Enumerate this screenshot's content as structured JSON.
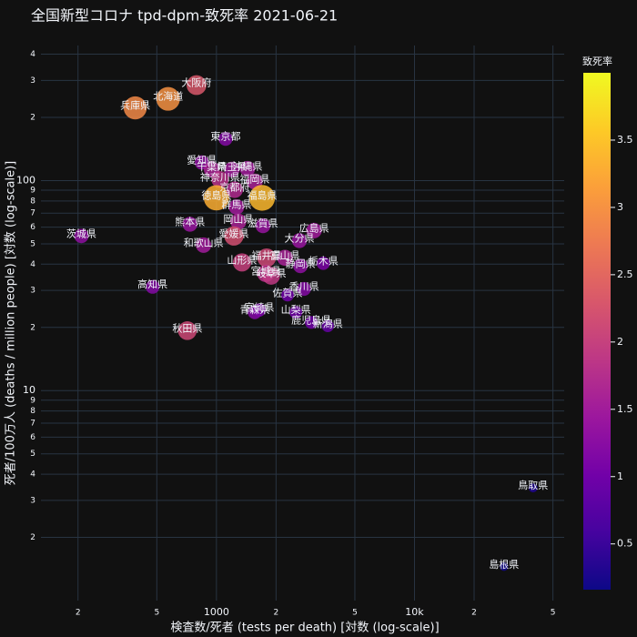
{
  "chart_data": {
    "type": "scatter",
    "title": "全国新型コロナ tpd-dpm-致死率 2021-06-21",
    "x_label": "検査数/死者 (tests per death) [対数 (log-scale)]",
    "y_label": "死者/100万人 (deaths / million people) [対数 (log-scale)]",
    "log_x": true,
    "log_y": true,
    "grid": true,
    "xlim": [
      130,
      57000
    ],
    "ylim": [
      1,
      440
    ],
    "xticks": [
      {
        "value": 200,
        "label": "2"
      },
      {
        "value": 500,
        "label": "5"
      },
      1000,
      {
        "value": 2000,
        "label": "2"
      },
      {
        "value": 5000,
        "label": "5"
      },
      {
        "value": 10000,
        "label": "10k"
      },
      {
        "value": 20000,
        "label": "2"
      },
      {
        "value": 50000,
        "label": "5"
      }
    ],
    "yticks": [
      2,
      3,
      4,
      5,
      6,
      7,
      8,
      9,
      10,
      {
        "value": 20,
        "label": "2"
      },
      {
        "value": 30,
        "label": "3"
      },
      {
        "value": 40,
        "label": "4"
      },
      {
        "value": 50,
        "label": "5"
      },
      {
        "value": 60,
        "label": "6"
      },
      {
        "value": 70,
        "label": "7"
      },
      {
        "value": 80,
        "label": "8"
      },
      {
        "value": 90,
        "label": "9"
      },
      100,
      {
        "value": 200,
        "label": "2"
      },
      {
        "value": 300,
        "label": "3"
      },
      {
        "value": 400,
        "label": "4"
      }
    ],
    "text": [
      "大阪府",
      "兵庫県",
      "北海道",
      "東京都",
      "愛知県",
      "沖縄県",
      "千葉県",
      "埼玉県",
      "神奈川県",
      "福岡県",
      "徳島県",
      "京都府",
      "福島県",
      "群馬県",
      "岡山県",
      "熊本県",
      "滋賀県",
      "広島県",
      "茨城県",
      "愛媛県",
      "大分県",
      "和歌山県",
      "山形県",
      "福井県",
      "富山県",
      "静岡県",
      "栃木県",
      "宮城県",
      "岐阜県",
      "香川県",
      "高知県",
      "佐賀県",
      "青森県",
      "宮崎県",
      "山梨県",
      "鹿児島県",
      "新潟県",
      "秋田県",
      "鳥取県",
      "島根県"
    ],
    "x": [
      793,
      389,
      570,
      1112,
      844,
      1434,
      948,
      1198,
      1043,
      1561,
      1000,
      1236,
      1700,
      1263,
      1290,
      735,
      1718,
      3110,
      208,
      1225,
      2624,
      861,
      1346,
      1792,
      2218,
      2655,
      3462,
      1775,
      1890,
      2768,
      476,
      2287,
      1561,
      1646,
      2517,
      3015,
      3650,
      713,
      39700,
      28300
    ],
    "y": [
      285,
      222,
      245,
      158,
      122,
      114,
      113,
      113,
      101,
      99,
      82.8,
      90.5,
      82.8,
      74.9,
      63.8,
      62,
      61,
      57.8,
      54.5,
      54.5,
      51.8,
      49.3,
      40.8,
      42.9,
      42.9,
      39.2,
      40.4,
      36.1,
      35.2,
      30.5,
      31.2,
      28.5,
      23.6,
      24.2,
      23.6,
      21.1,
      20.3,
      19.3,
      3.44,
      1.45
    ],
    "color_values": [
      2.3,
      2.9,
      3.0,
      1.2,
      1.3,
      1.5,
      1.6,
      1.5,
      1.8,
      1.6,
      3.3,
      1.7,
      3.4,
      1.5,
      1.6,
      1.4,
      1.4,
      1.5,
      1.3,
      2.2,
      1.4,
      1.5,
      2.0,
      2.1,
      1.6,
      1.3,
      1.1,
      1.8,
      1.9,
      1.2,
      1.2,
      1.0,
      1.2,
      1.1,
      1.0,
      1.0,
      0.9,
      2.1,
      0.3,
      0.2
    ],
    "colorbar": {
      "title": "致死率",
      "lim": [
        0.16,
        4.0
      ],
      "ticks": [
        0.5,
        1,
        1.5,
        2,
        2.5,
        3,
        3.5
      ]
    }
  }
}
